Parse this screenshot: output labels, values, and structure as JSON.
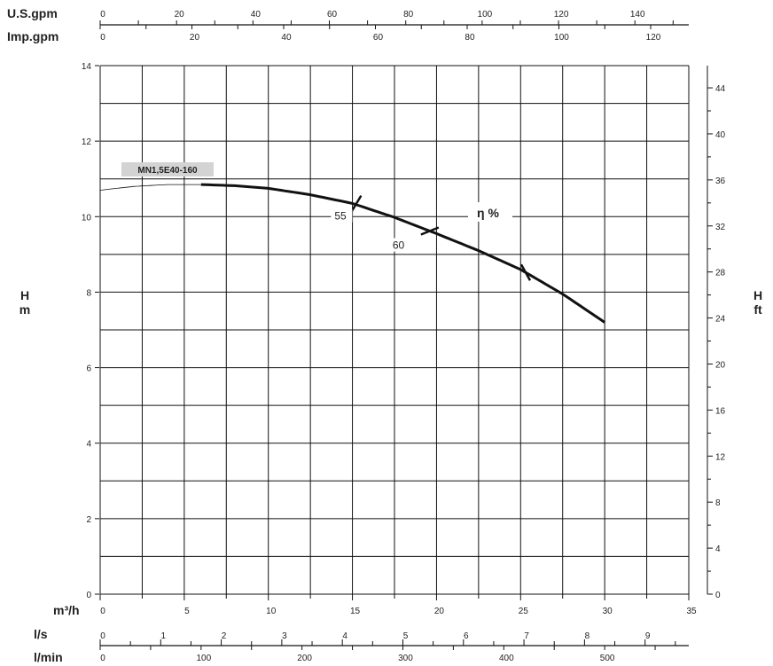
{
  "chart_data": {
    "type": "line",
    "model_label": "MN1,5E40-160",
    "x_axis": {
      "label": "m³/h",
      "range": [
        0,
        35
      ],
      "ticks": [
        0,
        5,
        10,
        15,
        20,
        25,
        30,
        35
      ]
    },
    "y_left": {
      "label": "H",
      "unit": "m",
      "range": [
        0,
        14
      ],
      "ticks": [
        0,
        2,
        4,
        6,
        8,
        10,
        12,
        14
      ]
    },
    "y_right": {
      "label": "H",
      "unit": "ft",
      "ticks": [
        0,
        4,
        8,
        12,
        16,
        20,
        24,
        28,
        32,
        36,
        40,
        44
      ],
      "factor": 3.2808
    },
    "top_axes": [
      {
        "label": "U.S.gpm",
        "factor": 4.403,
        "ticks": [
          0,
          20,
          40,
          60,
          80,
          100,
          120,
          140
        ],
        "minor": 10
      },
      {
        "label": "Imp.gpm",
        "factor": 3.666,
        "ticks": [
          0,
          20,
          40,
          60,
          80,
          100,
          120
        ],
        "minor": 10
      }
    ],
    "bottom_axes": [
      {
        "label": "l/s",
        "factor": 0.27778,
        "ticks": [
          0,
          1,
          2,
          3,
          4,
          5,
          6,
          7,
          8,
          9
        ],
        "minor": 0.5
      },
      {
        "label": "l/min",
        "factor": 16.667,
        "ticks": [
          0,
          100,
          200,
          300,
          400,
          500
        ],
        "minor": 50
      }
    ],
    "grid": true,
    "series": [
      {
        "name": "MN1,5E40-160",
        "x": [
          0,
          2,
          4,
          6,
          8,
          10,
          12.5,
          15,
          17.5,
          20,
          22.5,
          25,
          27.5,
          30
        ],
        "y": [
          10.7,
          10.8,
          10.85,
          10.85,
          10.82,
          10.75,
          10.58,
          10.35,
          9.98,
          9.55,
          9.1,
          8.6,
          7.95,
          7.2
        ],
        "thin_until": 6
      }
    ],
    "efficiency": {
      "label": "η %",
      "marks": [
        {
          "x": 15.2,
          "label": "55"
        },
        {
          "x": 19.6,
          "label": "60"
        },
        {
          "x": 25.3,
          "label": ""
        }
      ]
    }
  }
}
